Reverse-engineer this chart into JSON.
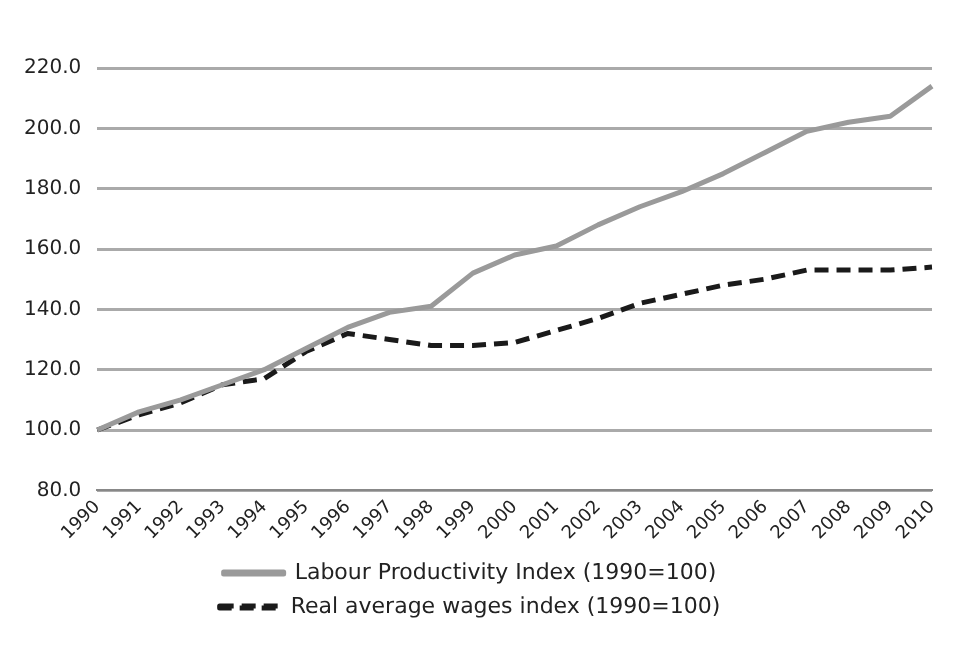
{
  "chart_data": {
    "type": "line",
    "categories": [
      "1990",
      "1991",
      "1992",
      "1993",
      "1994",
      "1995",
      "1996",
      "1997",
      "1998",
      "1999",
      "2000",
      "2001",
      "2002",
      "2003",
      "2004",
      "2005",
      "2006",
      "2007",
      "2008",
      "2009",
      "2010"
    ],
    "series": [
      {
        "name": "Labour Productivity Index (1990=100)",
        "color": "#9a9a9a",
        "line_style": "solid",
        "values": [
          100,
          106,
          110,
          115,
          120,
          127,
          134,
          139,
          141,
          152,
          158,
          161,
          168,
          174,
          179,
          185,
          192,
          199,
          202,
          204,
          214
        ]
      },
      {
        "name": "Real average wages index (1990=100)",
        "color": "#1a1a1a",
        "line_style": "dashed",
        "values": [
          100,
          105,
          109,
          115,
          117,
          126,
          132,
          130,
          128,
          128,
          129,
          133,
          137,
          142,
          145,
          148,
          150,
          153,
          153,
          153,
          154
        ]
      }
    ],
    "ylim": [
      80,
      220
    ],
    "yticks": [
      {
        "value": 80,
        "label": "80.0"
      },
      {
        "value": 100,
        "label": "100.0"
      },
      {
        "value": 120,
        "label": "120.0"
      },
      {
        "value": 140,
        "label": "140.0"
      },
      {
        "value": 160,
        "label": "160.0"
      },
      {
        "value": 180,
        "label": "180.0"
      },
      {
        "value": 200,
        "label": "200.0"
      },
      {
        "value": 220,
        "label": "220.0"
      }
    ],
    "grid": "y",
    "legend": "bottom",
    "marker": "none"
  }
}
